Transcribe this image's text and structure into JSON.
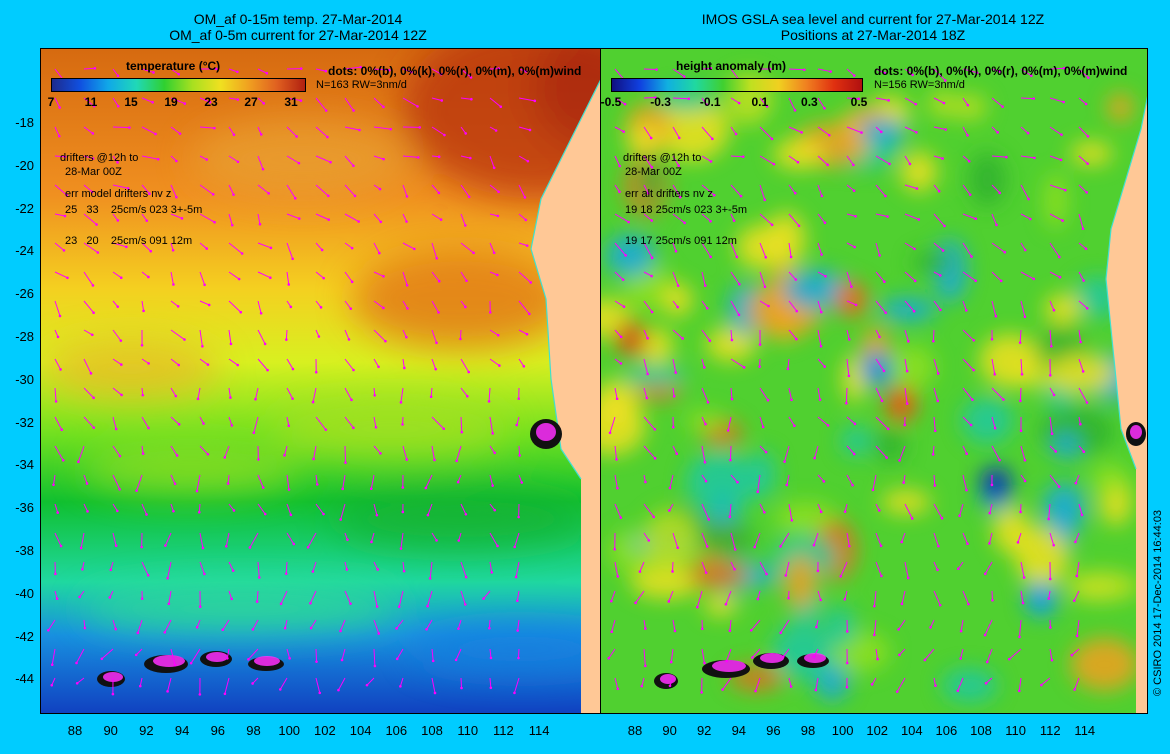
{
  "left_panel": {
    "title_line1": "OM_af 0-15m temp. 27-Mar-2014",
    "title_line2": "OM_af 0-5m current for 27-Mar-2014 12Z",
    "colorbar_title": "temperature (°C)",
    "colorbar_ticks": [
      "7",
      "11",
      "15",
      "19",
      "23",
      "27",
      "31"
    ],
    "dots": "dots: 0%(b), 0%(k), 0%(r), 0%(m), 0%(m)wind",
    "n_rw": "N=163 RW=3nm/d",
    "drifters_line1": "drifters @12h to",
    "drifters_line2": "28-Mar 00Z",
    "err_header": "err model drifters nv z",
    "err_row1": "25   33    25cm/s 023 3+-5m",
    "err_row2": "23   20    25cm/s 091 12m"
  },
  "right_panel": {
    "title_line1": "IMOS GSLA sea level and current for 27-Mar-2014 12Z",
    "title_line2": "Positions at 27-Mar-2014 18Z",
    "colorbar_title": "height anomaly  (m)",
    "colorbar_ticks": [
      "-0.5",
      "-0.3",
      "-0.1",
      "0.1",
      "0.3",
      "0.5"
    ],
    "dots": "dots: 0%(b), 0%(k), 0%(r), 0%(m), 0%(m)wind",
    "n_rw": "N=156 RW=3nm/d",
    "drifters_line1": "drifters @12h to",
    "drifters_line2": "28-Mar 00Z",
    "err_header": "err alt drifters nv z",
    "err_row1": "19 18 25cm/s 023 3+-5m",
    "err_row2": "19 17 25cm/s 091 12m"
  },
  "axes": {
    "lat_labels": [
      "-18",
      "-20",
      "-22",
      "-24",
      "-26",
      "-28",
      "-30",
      "-32",
      "-34",
      "-36",
      "-38",
      "-40",
      "-42",
      "-44"
    ],
    "left_lon_labels": [
      "88",
      "90",
      "92",
      "94",
      "96",
      "98",
      "100",
      "102",
      "104",
      "106",
      "108",
      "110",
      "112",
      "114"
    ],
    "right_lon_labels": [
      "88",
      "90",
      "92",
      "94",
      "96",
      "98",
      "100",
      "102",
      "104",
      "106",
      "108",
      "110",
      "112",
      "114"
    ]
  },
  "credit": "© CSIRO 2014   17-Dec-2014 16:44:03",
  "colors": {
    "background": "#00ccff",
    "land": "#ffc896",
    "current_arrows": "#ff00ff",
    "coastline": "#40e0d0"
  }
}
